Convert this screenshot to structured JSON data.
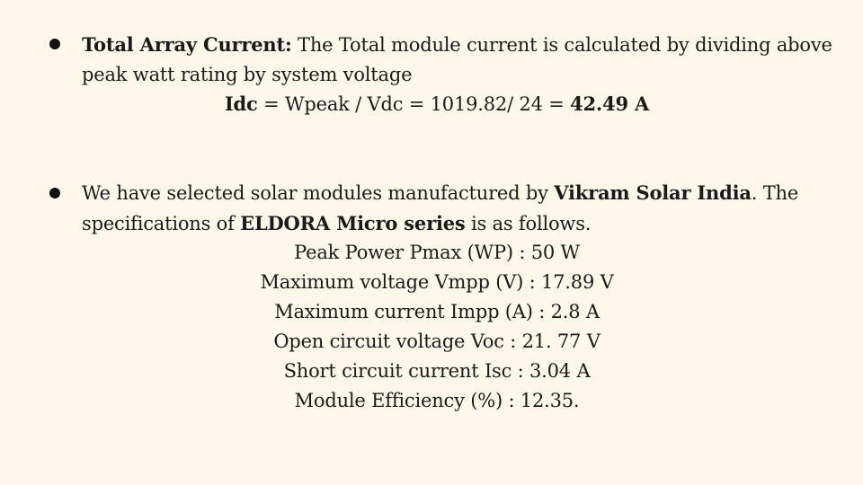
{
  "bullet1": {
    "label": "Total Array Current:",
    "text": " The Total module current is calculated by dividing above peak watt rating by system voltage",
    "formula_lhs": "Idc",
    "formula_mid": " = Wpeak / Vdc = 1019.82/ 24 = ",
    "formula_result": "42.49 A"
  },
  "bullet2": {
    "text_before": "We have selected solar modules manufactured by ",
    "manufacturer": "Vikram Solar India",
    "text_middle": ". The specifications of ",
    "series": "ELDORA Micro series",
    "text_after": " is as follows.",
    "specs": [
      "Peak Power Pmax (WP) : 50 W",
      "Maximum voltage Vmpp (V) : 17.89 V",
      "Maximum current Impp (A) : 2.8 A",
      "Open circuit voltage Voc : 21. 77 V",
      "Short circuit current Isc : 3.04 A",
      "Module Efficiency (%) : 12.35."
    ]
  }
}
